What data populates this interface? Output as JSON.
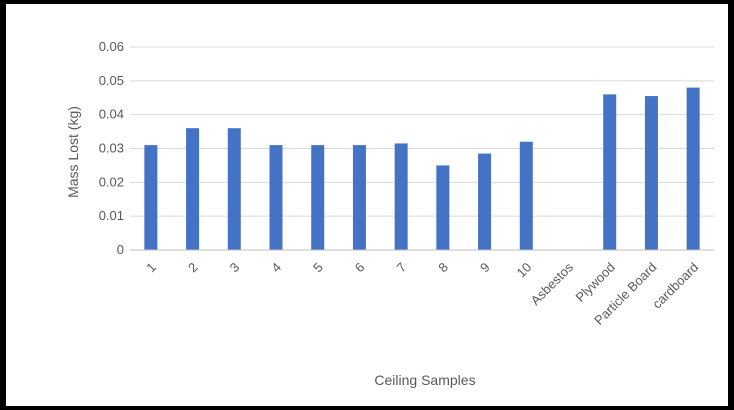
{
  "chart_data": {
    "type": "bar",
    "title": "",
    "xlabel": "Ceiling Samples",
    "ylabel": "Mass Lost (kg)",
    "categories": [
      "1",
      "2",
      "3",
      "4",
      "5",
      "6",
      "7",
      "8",
      "9",
      "10",
      "Asbestos",
      "Plywood",
      "Particle Board",
      "cardboard"
    ],
    "values": [
      0.031,
      0.036,
      0.036,
      0.031,
      0.031,
      0.031,
      0.0315,
      0.025,
      0.0285,
      0.032,
      0,
      0.046,
      0.0455,
      0.048
    ],
    "ylim": [
      0,
      0.06
    ],
    "yticks": [
      "0",
      "0.01",
      "0.02",
      "0.03",
      "0.04",
      "0.05",
      "0.06"
    ],
    "grid": true,
    "legend": "none",
    "colors": {
      "bar": "#4472C4",
      "grid": "#D9D9D9",
      "axis": "#BFBFBF",
      "text": "#595959",
      "frame": "#000000"
    }
  }
}
